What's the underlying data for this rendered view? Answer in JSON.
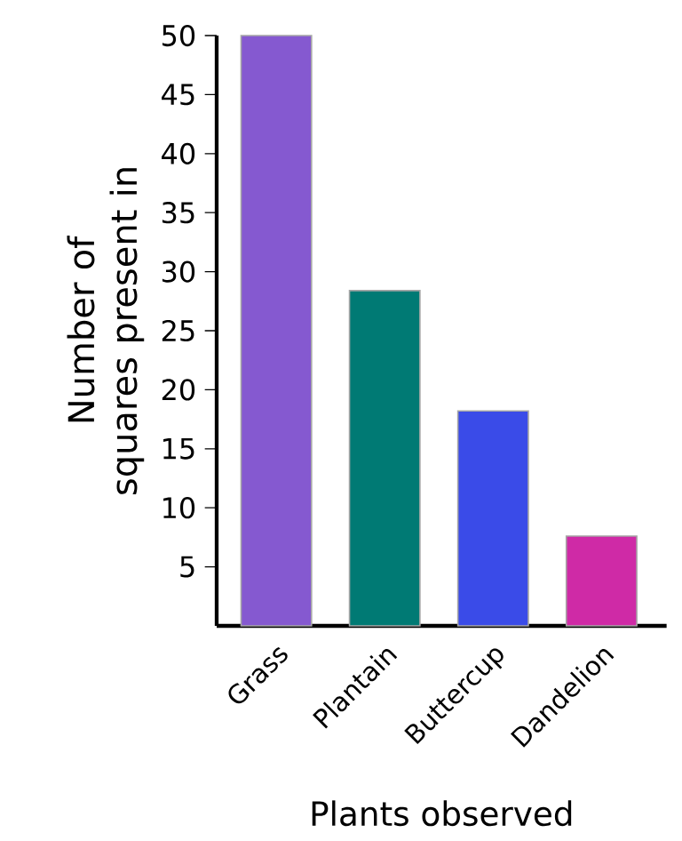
{
  "chart_data": {
    "type": "bar",
    "xlabel": "Plants observed",
    "ylabel": "Number of squares present in",
    "categories": [
      "Grass",
      "Plantain",
      "Buttercup",
      "Dandelion"
    ],
    "values": [
      50,
      28.4,
      18.2,
      7.6
    ],
    "colors": [
      "#8559d0",
      "#007a74",
      "#3a4be8",
      "#cf2aa6"
    ],
    "ylim": [
      0,
      50
    ],
    "yticks": [
      5,
      10,
      15,
      20,
      25,
      30,
      35,
      40,
      45,
      50
    ],
    "grid": false
  }
}
